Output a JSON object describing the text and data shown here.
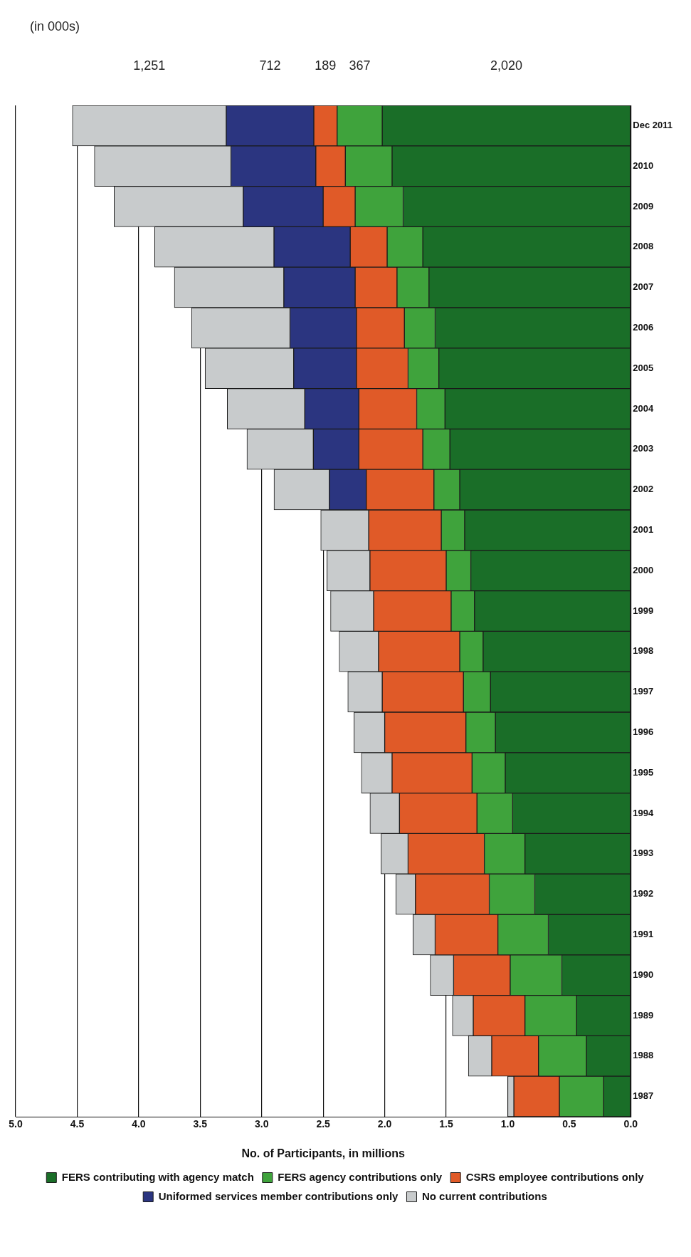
{
  "chart_data": {
    "type": "bar",
    "orientation": "horizontal",
    "stacked": true,
    "xlabel": "No. of Participants, in millions",
    "annotations": [
      "(in 000s)",
      "1,251",
      "712",
      "189",
      "367",
      "2,020"
    ],
    "categories": [
      "Dec 2011",
      "2010",
      "2009",
      "2008",
      "2007",
      "2006",
      "2005",
      "2004",
      "2003",
      "2002",
      "2001",
      "2000",
      "1999",
      "1998",
      "1997",
      "1996",
      "1995",
      "1994",
      "1993",
      "1992",
      "1991",
      "1990",
      "1989",
      "1988",
      "1987"
    ],
    "series": [
      {
        "name": "FERS contributing with agency match",
        "color": "#1a6e28",
        "values": [
          2.02,
          1.94,
          1.85,
          1.69,
          1.64,
          1.59,
          1.56,
          1.51,
          1.47,
          1.39,
          1.35,
          1.3,
          1.27,
          1.2,
          1.14,
          1.1,
          1.02,
          0.96,
          0.86,
          0.78,
          0.67,
          0.56,
          0.44,
          0.36,
          0.22
        ]
      },
      {
        "name": "FERS agency contributions only",
        "color": "#3fa33c",
        "values": [
          0.367,
          0.38,
          0.39,
          0.29,
          0.26,
          0.25,
          0.25,
          0.23,
          0.22,
          0.21,
          0.19,
          0.2,
          0.19,
          0.19,
          0.22,
          0.24,
          0.27,
          0.29,
          0.33,
          0.37,
          0.41,
          0.42,
          0.42,
          0.39,
          0.36
        ]
      },
      {
        "name": "CSRS employee contributions only",
        "color": "#e05a28",
        "values": [
          0.189,
          0.24,
          0.26,
          0.3,
          0.34,
          0.39,
          0.42,
          0.47,
          0.52,
          0.55,
          0.59,
          0.62,
          0.63,
          0.66,
          0.66,
          0.66,
          0.65,
          0.63,
          0.62,
          0.6,
          0.51,
          0.46,
          0.42,
          0.38,
          0.37
        ]
      },
      {
        "name": "Uniformed services member contributions only",
        "color": "#2b3580",
        "values": [
          0.712,
          0.69,
          0.65,
          0.62,
          0.58,
          0.54,
          0.51,
          0.44,
          0.37,
          0.3,
          0,
          0,
          0,
          0,
          0,
          0,
          0,
          0,
          0,
          0,
          0,
          0,
          0,
          0,
          0
        ]
      },
      {
        "name": "No current contributions",
        "color": "#c8cbcc",
        "values": [
          1.251,
          1.11,
          1.05,
          0.97,
          0.89,
          0.8,
          0.72,
          0.63,
          0.54,
          0.45,
          0.39,
          0.35,
          0.35,
          0.32,
          0.28,
          0.25,
          0.25,
          0.24,
          0.22,
          0.16,
          0.18,
          0.19,
          0.17,
          0.19,
          0.05
        ]
      }
    ],
    "xlim": [
      5.0,
      0
    ],
    "xticks": [
      {
        "value": 5,
        "label": "5.0"
      },
      {
        "value": 4.5,
        "label": "4.5"
      },
      {
        "value": 4,
        "label": "4.0"
      },
      {
        "value": 3.5,
        "label": "3.5"
      },
      {
        "value": 3,
        "label": "3.0"
      },
      {
        "value": 2.5,
        "label": "2.5"
      },
      {
        "value": 2,
        "label": "2.0"
      },
      {
        "value": 1.5,
        "label": "1.5"
      },
      {
        "value": 1,
        "label": "1.0"
      },
      {
        "value": 0.5,
        "label": "0.5"
      },
      {
        "value": 0,
        "label": "0.0"
      }
    ],
    "grid": "x",
    "legend": "bottom"
  }
}
